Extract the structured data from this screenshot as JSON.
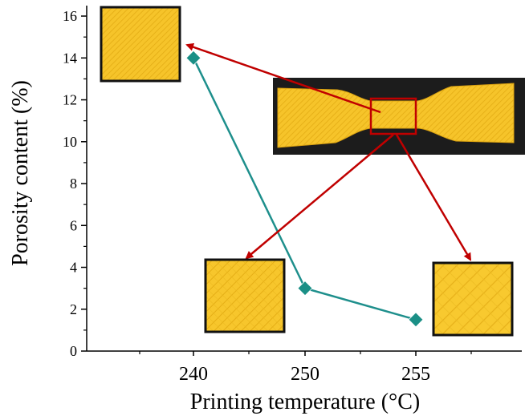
{
  "chart_data": {
    "type": "line",
    "title": "",
    "xlabel": "Printing temperature (°C)",
    "ylabel": "Porosity content (%)",
    "x_tick_labels": [
      "240",
      "250",
      "255"
    ],
    "y_tick_labels": [
      "0",
      "2",
      "4",
      "6",
      "8",
      "10",
      "12",
      "14",
      "16"
    ],
    "ylim": [
      0,
      16.5
    ],
    "grid": false,
    "legend": "none",
    "series": [
      {
        "categories": [
          "240",
          "250",
          "255"
        ],
        "values": [
          14.0,
          3.0,
          1.5
        ],
        "color": "#1e8f8c",
        "marker": "diamond",
        "marker_color": "#1a8f86"
      }
    ],
    "insets": [
      {
        "description": "yellow tensile specimen with highlighted gauge section"
      },
      {
        "description": "porosity texture at 240 °C"
      },
      {
        "description": "porosity texture at 250 °C"
      },
      {
        "description": "porosity texture at 255 °C"
      }
    ],
    "annotation_arrow_color": "#c00000"
  }
}
